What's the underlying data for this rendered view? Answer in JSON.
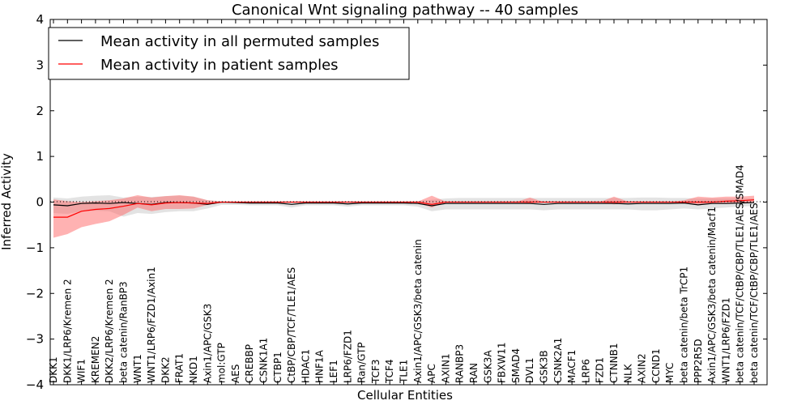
{
  "chart_data": {
    "type": "line",
    "title": "Canonical Wnt signaling pathway -- 40 samples",
    "xlabel": "Cellular Entities",
    "ylabel": "Inferred Activity",
    "ylim": [
      -4,
      4
    ],
    "yticks": [
      -4,
      -3,
      -2,
      -1,
      0,
      1,
      2,
      3,
      4
    ],
    "ytick_labels": [
      "−4",
      "−3",
      "−2",
      "−1",
      "0",
      "1",
      "2",
      "3",
      "4"
    ],
    "grid": false,
    "legend_position": "top-left",
    "colors": {
      "permuted": "#000000",
      "patient": "#ff0000",
      "permuted_band": "#cccccc",
      "patient_band": "#ff6666"
    },
    "categories": [
      "DKK1",
      "DKK1/LRP6/Kremen 2",
      "WIF1",
      "KREMEN2",
      "DKK2/LRP6/Kremen 2",
      "beta catenin/RanBP3",
      "WNT1",
      "WNT1/LRP6/FZD1/Axin1",
      "DKK2",
      "FRAT1",
      "NKD1",
      "Axin1/APC/GSK3",
      "mol:GTP",
      "AES",
      "CREBBP",
      "CSNK1A1",
      "CTBP1",
      "CtBP/CBP/TCF/TLE1/AES",
      "HDAC1",
      "HNF1A",
      "LEF1",
      "LRP6/FZD1",
      "Ran/GTP",
      "TCF3",
      "TCF4",
      "TLE1",
      "Axin1/APC/GSK3/beta catenin",
      "APC",
      "AXIN1",
      "RANBP3",
      "RAN",
      "GSK3A",
      "FBXW11",
      "SMAD4",
      "DVL1",
      "GSK3B",
      "CSNK2A1",
      "MACF1",
      "LRP6",
      "FZD1",
      "CTNNB1",
      "NLK",
      "AXIN2",
      "CCND1",
      "MYC",
      "beta catenin/beta TrCP1",
      "PPP2R5D",
      "Axin1/APC/GSK3/beta catenin/Macf1",
      "WNT1/LRP6/FZD1",
      "beta catenin/TCF/CtBP/CBP/TLE1/AES/SMAD4",
      "beta catenin/TCF/CtBP/CBP/TLE1/AES"
    ],
    "series": [
      {
        "name": "Mean activity in all permuted samples",
        "values": [
          -0.06,
          -0.08,
          -0.03,
          -0.02,
          -0.03,
          -0.01,
          -0.03,
          -0.05,
          -0.01,
          -0.01,
          -0.02,
          -0.05,
          0,
          -0.01,
          -0.02,
          -0.02,
          -0.02,
          -0.05,
          -0.02,
          -0.02,
          -0.02,
          -0.04,
          -0.02,
          -0.02,
          -0.02,
          -0.02,
          -0.03,
          -0.08,
          -0.03,
          -0.03,
          -0.03,
          -0.03,
          -0.03,
          -0.03,
          -0.03,
          -0.05,
          -0.03,
          -0.03,
          -0.03,
          -0.03,
          -0.03,
          -0.04,
          -0.03,
          -0.03,
          -0.03,
          -0.02,
          -0.06,
          -0.03,
          -0.03,
          -0.02,
          -0.01
        ],
        "lower": [
          -0.24,
          -0.26,
          -0.2,
          -0.19,
          -0.2,
          -0.32,
          -0.24,
          -0.26,
          -0.22,
          -0.2,
          -0.2,
          -0.14,
          -0.06,
          -0.06,
          -0.07,
          -0.07,
          -0.07,
          -0.12,
          -0.07,
          -0.07,
          -0.07,
          -0.1,
          -0.07,
          -0.07,
          -0.07,
          -0.07,
          -0.1,
          -0.2,
          -0.16,
          -0.16,
          -0.16,
          -0.16,
          -0.16,
          -0.16,
          -0.16,
          -0.18,
          -0.16,
          -0.16,
          -0.16,
          -0.16,
          -0.16,
          -0.16,
          -0.18,
          -0.18,
          -0.16,
          -0.14,
          -0.16,
          -0.14,
          -0.12,
          -0.1,
          -0.08
        ],
        "upper": [
          0.1,
          0.08,
          0.12,
          0.14,
          0.15,
          0.1,
          0.12,
          0.11,
          0.13,
          0.14,
          0.12,
          0.04,
          0.02,
          0.01,
          0.01,
          0.01,
          0.01,
          0.01,
          0.01,
          0.01,
          0.01,
          0.01,
          0.01,
          0.01,
          0.01,
          0.01,
          0.02,
          0.05,
          0.08,
          0.09,
          0.09,
          0.09,
          0.09,
          0.09,
          0.09,
          0.09,
          0.09,
          0.09,
          0.09,
          0.09,
          0.09,
          0.09,
          0.1,
          0.1,
          0.09,
          0.09,
          0.08,
          0.08,
          0.08,
          0.08,
          0.08
        ]
      },
      {
        "name": "Mean activity in patient samples",
        "values": [
          -0.33,
          -0.33,
          -0.2,
          -0.16,
          -0.14,
          -0.09,
          -0.03,
          -0.06,
          -0.02,
          -0.01,
          -0.02,
          -0.03,
          0,
          0,
          0,
          0,
          0,
          0,
          0,
          0,
          0,
          0,
          0,
          0,
          0,
          0,
          0.0,
          -0.05,
          0,
          0,
          0,
          0,
          0,
          0,
          0,
          0,
          0,
          0,
          0,
          0,
          0,
          0,
          0,
          0,
          0,
          0,
          0,
          0,
          0.02,
          0.03,
          0.05
        ],
        "lower": [
          -0.78,
          -0.7,
          -0.55,
          -0.48,
          -0.42,
          -0.28,
          -0.12,
          -0.2,
          -0.15,
          -0.15,
          -0.14,
          -0.06,
          -0.01,
          0,
          0,
          0,
          0,
          0,
          0,
          0,
          0,
          0,
          0,
          0,
          0,
          0,
          -0.02,
          -0.12,
          0,
          0,
          0,
          0,
          0,
          0,
          -0.02,
          0,
          0,
          0,
          0,
          0,
          -0.05,
          0,
          0,
          0,
          0,
          -0.02,
          -0.05,
          -0.03,
          -0.02,
          -0.02,
          0
        ],
        "upper": [
          0.06,
          0.02,
          0.0,
          0.02,
          0.04,
          0.08,
          0.15,
          0.1,
          0.13,
          0.15,
          0.12,
          0.04,
          0.01,
          0,
          0,
          0,
          0,
          0,
          0,
          0,
          0,
          0,
          0,
          0,
          0,
          0,
          0.01,
          0.14,
          0.01,
          0,
          0,
          0,
          0,
          0,
          0.1,
          0,
          0,
          0,
          0,
          0,
          0.12,
          0.01,
          0,
          0,
          0,
          0.04,
          0.12,
          0.1,
          0.12,
          0.12,
          0.14
        ]
      }
    ]
  }
}
